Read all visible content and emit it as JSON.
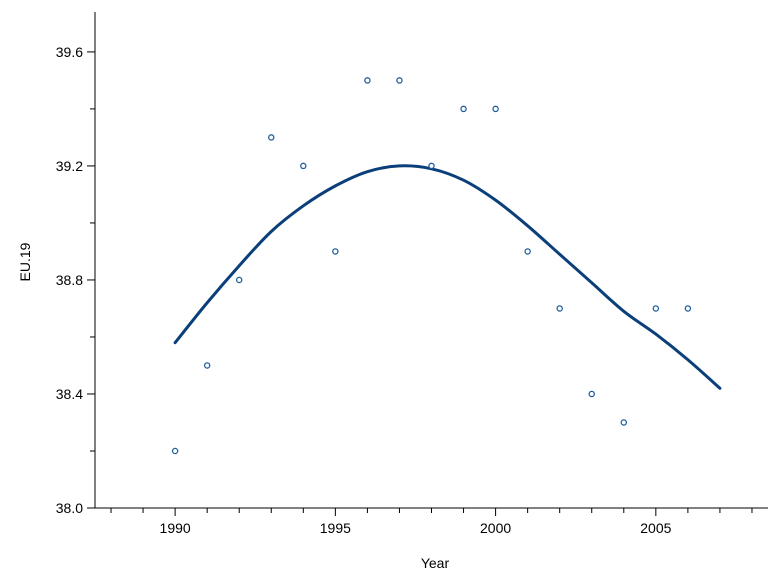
{
  "chart_data": {
    "type": "scatter",
    "xlabel": "Year",
    "ylabel": "EU.19",
    "xlim": [
      1987.5,
      2008.5
    ],
    "ylim": [
      38.0,
      39.74
    ],
    "x_major_ticks": [
      1990,
      1995,
      2000,
      2005
    ],
    "x_minor_ticks": [
      1988,
      1989,
      1991,
      1992,
      1993,
      1994,
      1996,
      1997,
      1998,
      1999,
      2001,
      2002,
      2003,
      2004,
      2006,
      2007,
      2008
    ],
    "y_major_ticks": [
      38.0,
      38.4,
      38.8,
      39.2,
      39.6
    ],
    "y_minor_ticks": [
      38.2,
      38.6,
      39.0,
      39.4
    ],
    "x_tick_labels": [
      "1990",
      "1995",
      "2000",
      "2005"
    ],
    "y_tick_labels": [
      "38.0",
      "38.4",
      "38.8",
      "39.2",
      "39.6"
    ],
    "grid": false,
    "colors": {
      "points": "#1f5fa0",
      "curve": "#0b3f7a",
      "axis": "#000000"
    },
    "series": [
      {
        "kind": "points",
        "x": [
          1990,
          1991,
          1992,
          1993,
          1994,
          1995,
          1996,
          1997,
          1998,
          1999,
          2000,
          2001,
          2002,
          2003,
          2004,
          2005,
          2006
        ],
        "y": [
          38.2,
          38.5,
          38.8,
          39.3,
          39.2,
          38.9,
          39.5,
          39.5,
          39.2,
          39.4,
          39.4,
          38.9,
          38.7,
          38.4,
          38.3,
          38.7,
          38.7
        ]
      },
      {
        "kind": "smooth-curve",
        "x": [
          1990,
          1991,
          1992,
          1993,
          1994,
          1995,
          1996,
          1997,
          1998,
          1999,
          2000,
          2001,
          2002,
          2003,
          2004,
          2005,
          2006,
          2007
        ],
        "y": [
          38.58,
          38.72,
          38.85,
          38.97,
          39.06,
          39.13,
          39.18,
          39.2,
          39.19,
          39.15,
          39.08,
          38.99,
          38.89,
          38.79,
          38.69,
          38.61,
          38.52,
          38.42
        ]
      }
    ]
  }
}
